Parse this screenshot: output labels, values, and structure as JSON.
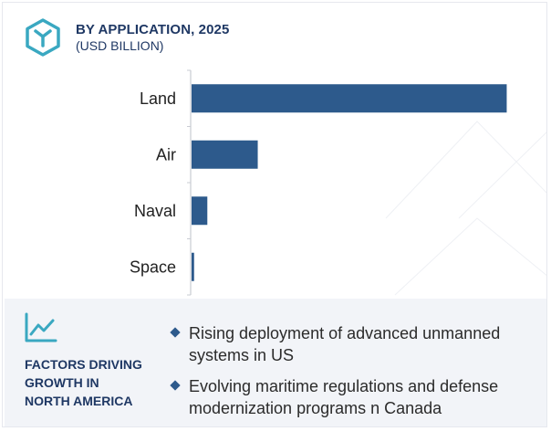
{
  "header": {
    "title": "BY APPLICATION, 2025",
    "subtitle": "(USD BILLION)"
  },
  "colors": {
    "bar": "#2d5a8c",
    "heading": "#1f3864",
    "panel": "#f2f4f8",
    "accent": "#3aa8c1"
  },
  "icons": {
    "logo": "hexagon-logo-icon",
    "trend": "trend-up-chart-icon",
    "bullet": "diamond-bullet-icon"
  },
  "chart_data": {
    "type": "bar",
    "orientation": "horizontal",
    "title": "BY APPLICATION, 2025",
    "subtitle": "(USD BILLION)",
    "categories": [
      "Land",
      "Air",
      "Naval",
      "Space"
    ],
    "values": [
      10.0,
      2.1,
      0.5,
      0.08
    ],
    "xlim": [
      0,
      11
    ],
    "grid": false,
    "legend": "none",
    "xlabel": "",
    "ylabel": ""
  },
  "factors": {
    "heading_lines": [
      "FACTORS DRIVING",
      "GROWTH IN",
      "NORTH AMERICA"
    ],
    "bullets": [
      "Rising deployment of advanced unmanned systems in US",
      "Evolving maritime regulations and defense modernization programs n Canada"
    ]
  }
}
